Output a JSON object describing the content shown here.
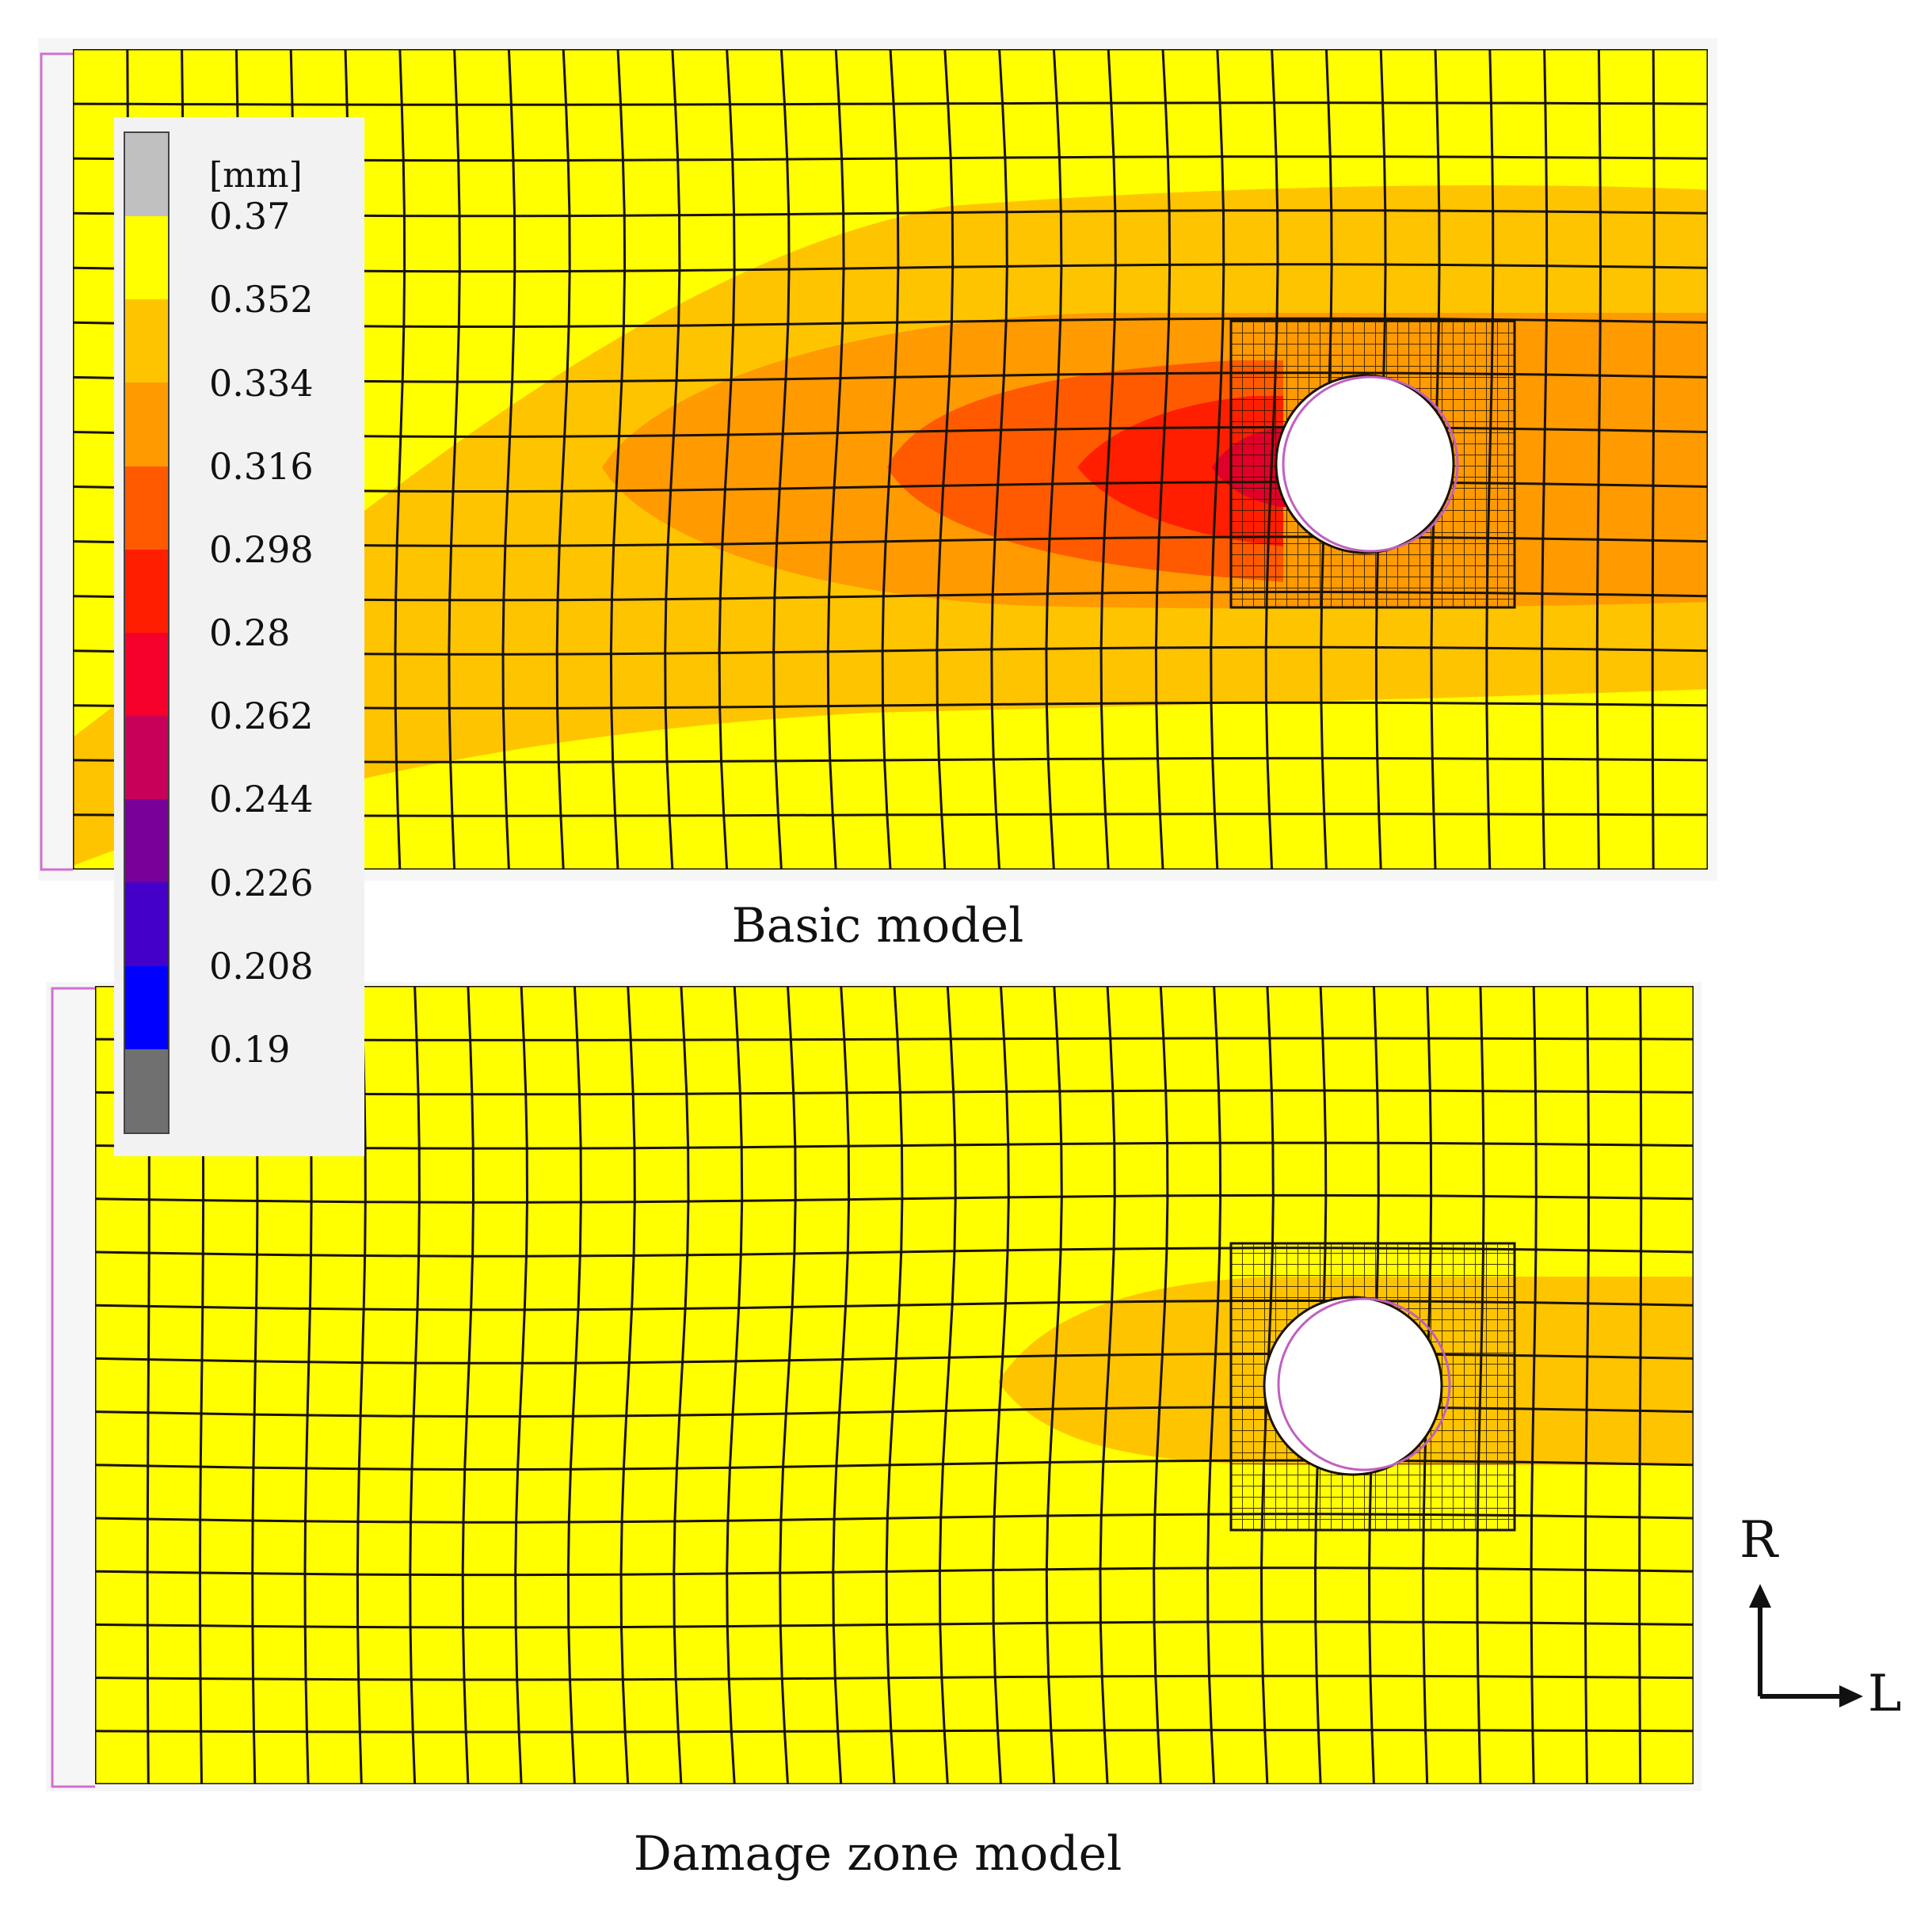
{
  "legend": {
    "unit": "[mm]",
    "labels": [
      "0.37",
      "0.352",
      "0.334",
      "0.316",
      "0.298",
      "0.28",
      "0.262",
      "0.244",
      "0.226",
      "0.208",
      "0.19"
    ],
    "colors": [
      "#c0c0c0",
      "#ffff00",
      "#ffc400",
      "#ff9a00",
      "#ff5a00",
      "#ff1e00",
      "#f5002a",
      "#c8005a",
      "#7a009a",
      "#4400c8",
      "#0000ff",
      "#707070"
    ]
  },
  "panels": {
    "top_caption": "Basic model",
    "bottom_caption": "Damage zone model"
  },
  "axes": {
    "vertical": "R",
    "horizontal": "L"
  }
}
